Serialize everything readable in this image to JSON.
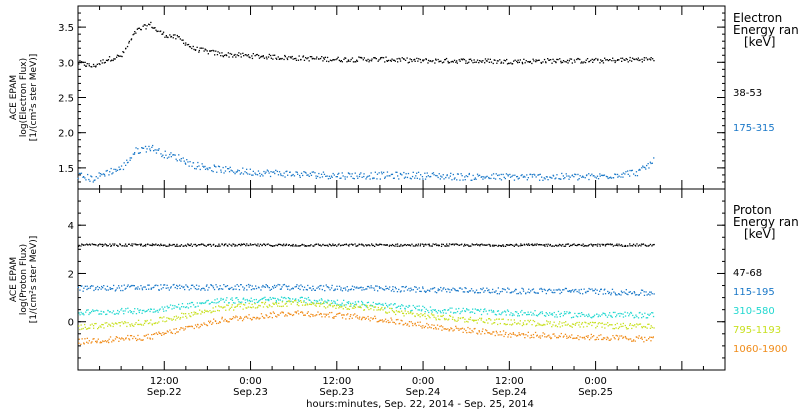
{
  "chart_data": [
    {
      "type": "scatter",
      "panel": "electron",
      "ylabel_lines": [
        "ACE EPAM",
        "log(Electron Flux)",
        "[1/(cm²s ster MeV)]"
      ],
      "ylim": [
        1.2,
        3.8
      ],
      "yticks": [
        "1.5",
        "2.0",
        "2.5",
        "3.0",
        "3.5"
      ],
      "legend_title_lines": [
        "Electron",
        "Energy ran",
        "[keV]"
      ],
      "series": [
        {
          "name": "38-53",
          "color": "#000000",
          "x": [
            0,
            2,
            4,
            6,
            8,
            10,
            11,
            12,
            14,
            16,
            20,
            24,
            30,
            36,
            42,
            48,
            54,
            60,
            66,
            72,
            78,
            80
          ],
          "y": [
            3.0,
            2.95,
            3.05,
            3.1,
            3.45,
            3.55,
            3.45,
            3.4,
            3.35,
            3.2,
            3.12,
            3.1,
            3.07,
            3.05,
            3.05,
            3.03,
            3.03,
            3.02,
            3.03,
            3.03,
            3.05,
            3.05
          ]
        },
        {
          "name": "175-315",
          "color": "#1a78c8",
          "x": [
            0,
            2,
            4,
            6,
            8,
            10,
            11,
            12,
            14,
            16,
            20,
            24,
            30,
            36,
            42,
            48,
            54,
            60,
            66,
            72,
            78,
            80
          ],
          "y": [
            1.4,
            1.35,
            1.45,
            1.5,
            1.75,
            1.8,
            1.75,
            1.7,
            1.65,
            1.55,
            1.48,
            1.45,
            1.42,
            1.4,
            1.4,
            1.4,
            1.38,
            1.38,
            1.38,
            1.38,
            1.45,
            1.6
          ]
        }
      ]
    },
    {
      "type": "scatter",
      "panel": "proton",
      "ylabel_lines": [
        "ACE EPAM",
        "log(Proton Flux)",
        "[1/(cm²s ster MeV)]"
      ],
      "ylim": [
        -2,
        5.5
      ],
      "yticks": [
        "0",
        "2",
        "4"
      ],
      "legend_title_lines": [
        "Proton",
        "Energy ran",
        "[keV]"
      ],
      "series": [
        {
          "name": "47-68",
          "color": "#000000",
          "x": [
            0,
            10,
            20,
            30,
            40,
            50,
            60,
            70,
            80
          ],
          "y": [
            3.2,
            3.2,
            3.2,
            3.2,
            3.2,
            3.2,
            3.2,
            3.2,
            3.2
          ]
        },
        {
          "name": "115-195",
          "color": "#1a78c8",
          "x": [
            0,
            10,
            20,
            30,
            40,
            50,
            60,
            70,
            80
          ],
          "y": [
            1.4,
            1.45,
            1.45,
            1.45,
            1.4,
            1.35,
            1.3,
            1.3,
            1.2
          ]
        },
        {
          "name": "310-580",
          "color": "#22d8d0",
          "x": [
            0,
            10,
            20,
            30,
            40,
            50,
            60,
            70,
            80
          ],
          "y": [
            0.4,
            0.5,
            0.9,
            0.95,
            0.75,
            0.5,
            0.4,
            0.3,
            0.3
          ]
        },
        {
          "name": "795-1193",
          "color": "#c8e020",
          "x": [
            0,
            10,
            20,
            30,
            40,
            50,
            60,
            70,
            80
          ],
          "y": [
            -0.2,
            0.0,
            0.6,
            0.8,
            0.6,
            0.2,
            0.0,
            -0.1,
            -0.2
          ]
        },
        {
          "name": "1060-1900",
          "color": "#f08c1a",
          "x": [
            0,
            10,
            20,
            30,
            40,
            50,
            60,
            70,
            80
          ],
          "y": [
            -0.8,
            -0.6,
            0.1,
            0.4,
            0.2,
            -0.2,
            -0.5,
            -0.6,
            -0.7
          ]
        }
      ]
    }
  ],
  "xaxis": {
    "xlim": [
      0,
      90
    ],
    "major_ticks": [
      {
        "x": 12,
        "time": "12:00",
        "date": "Sep.22"
      },
      {
        "x": 24,
        "time": "0:00",
        "date": "Sep.23"
      },
      {
        "x": 36,
        "time": "12:00",
        "date": "Sep.23"
      },
      {
        "x": 48,
        "time": "0:00",
        "date": "Sep.24"
      },
      {
        "x": 60,
        "time": "12:00",
        "date": "Sep.24"
      },
      {
        "x": 72,
        "time": "0:00",
        "date": "Sep.25"
      }
    ],
    "xlabel": "hours:minutes, Sep. 22, 2014 - Sep. 25, 2014"
  }
}
